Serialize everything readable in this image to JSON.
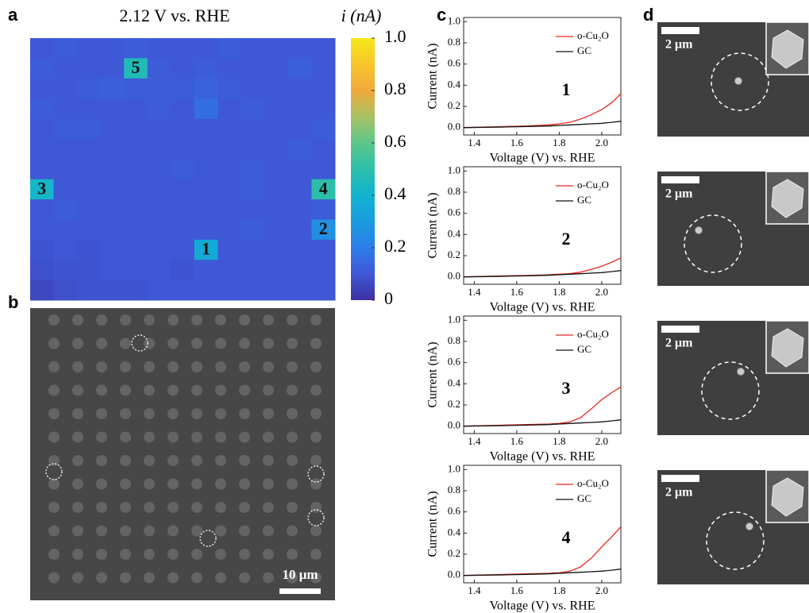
{
  "panel_labels": [
    "a",
    "b",
    "c",
    "d"
  ],
  "sem_b": {
    "scale_bar": "10 μm"
  },
  "sem_d": {
    "scale_bars": [
      "2 μm",
      "2 μm",
      "2 μm",
      "2 μm"
    ]
  },
  "chart_data": [
    {
      "type": "heatmap",
      "title": "2.12 V vs. RHE",
      "colorbar_label": "i (nA)",
      "colormap": [
        "#3d2fa0",
        "#3f58d6",
        "#2d7ee8",
        "#1a9be0",
        "#10b4d0",
        "#2bbfaa",
        "#5cc78a",
        "#a9c265",
        "#f1a83a",
        "#f8c52a",
        "#f6e81b"
      ],
      "zlim": [
        0,
        1
      ],
      "zticks": [
        0,
        0.2,
        0.4,
        0.6,
        0.8,
        {
          "value": 1,
          "label": "1.0"
        }
      ],
      "z": [
        [
          0.1,
          0.11,
          0.1,
          0.1,
          0.11,
          0.1,
          0.1,
          0.1,
          0.11,
          0.1,
          0.1,
          0.1,
          0.1
        ],
        [
          0.11,
          0.1,
          0.1,
          0.1,
          0.46,
          0.11,
          0.1,
          0.11,
          0.1,
          0.1,
          0.1,
          0.12,
          0.1
        ],
        [
          0.1,
          0.1,
          0.11,
          0.12,
          0.11,
          0.11,
          0.11,
          0.13,
          0.11,
          0.1,
          0.1,
          0.1,
          0.1
        ],
        [
          0.11,
          0.1,
          0.1,
          0.1,
          0.1,
          0.11,
          0.1,
          0.16,
          0.1,
          0.11,
          0.1,
          0.1,
          0.1
        ],
        [
          0.1,
          0.11,
          0.11,
          0.1,
          0.1,
          0.1,
          0.1,
          0.1,
          0.1,
          0.1,
          0.1,
          0.1,
          0.11
        ],
        [
          0.1,
          0.1,
          0.1,
          0.1,
          0.1,
          0.1,
          0.1,
          0.1,
          0.1,
          0.1,
          0.1,
          0.11,
          0.1
        ],
        [
          0.1,
          0.1,
          0.1,
          0.1,
          0.1,
          0.1,
          0.11,
          0.1,
          0.1,
          0.11,
          0.1,
          0.1,
          0.1
        ],
        [
          0.42,
          0.1,
          0.1,
          0.1,
          0.1,
          0.1,
          0.1,
          0.1,
          0.1,
          0.11,
          0.1,
          0.1,
          0.5
        ],
        [
          0.1,
          0.11,
          0.1,
          0.1,
          0.1,
          0.1,
          0.1,
          0.1,
          0.1,
          0.1,
          0.1,
          0.1,
          0.11
        ],
        [
          0.1,
          0.1,
          0.1,
          0.1,
          0.1,
          0.1,
          0.1,
          0.1,
          0.1,
          0.11,
          0.1,
          0.1,
          0.26
        ],
        [
          0.09,
          0.1,
          0.09,
          0.1,
          0.1,
          0.1,
          0.1,
          0.36,
          0.1,
          0.1,
          0.1,
          0.1,
          0.1
        ],
        [
          0.08,
          0.09,
          0.09,
          0.1,
          0.1,
          0.1,
          0.09,
          0.1,
          0.1,
          0.1,
          0.1,
          0.1,
          0.1
        ],
        [
          0.06,
          0.08,
          0.09,
          0.09,
          0.09,
          0.1,
          0.1,
          0.1,
          0.1,
          0.1,
          0.1,
          0.1,
          0.1
        ]
      ],
      "cell_labels": [
        {
          "label": "5",
          "row": 1,
          "col": 4
        },
        {
          "label": "3",
          "row": 7,
          "col": 0
        },
        {
          "label": "4",
          "row": 7,
          "col": 12
        },
        {
          "label": "2",
          "row": 9,
          "col": 12
        },
        {
          "label": "1",
          "row": 10,
          "col": 7
        }
      ]
    },
    {
      "type": "line",
      "annotation": "1",
      "x_label": "Voltage (V) vs. RHE",
      "y_label": "Current (nA)",
      "xlim": [
        1.35,
        2.09
      ],
      "ylim": [
        -0.07,
        1.04
      ],
      "xticks": [
        1.4,
        1.6,
        1.8,
        {
          "value": 2,
          "label": "2.0"
        }
      ],
      "yticks": [
        {
          "value": 0,
          "label": "0.0"
        },
        0.2,
        0.4,
        0.6,
        0.8,
        {
          "value": 1,
          "label": "1.0"
        }
      ],
      "x": [
        1.35,
        1.45,
        1.55,
        1.65,
        1.75,
        1.8,
        1.85,
        1.9,
        1.95,
        2.0,
        2.05,
        2.09
      ],
      "series": [
        {
          "name": "o-Cu₂O",
          "color": "#e8281e",
          "values": [
            0,
            0.005,
            0.01,
            0.015,
            0.025,
            0.035,
            0.05,
            0.08,
            0.12,
            0.17,
            0.24,
            0.32
          ]
        },
        {
          "name": "GC",
          "color": "#111111",
          "values": [
            0,
            0.003,
            0.006,
            0.01,
            0.015,
            0.02,
            0.025,
            0.03,
            0.035,
            0.04,
            0.05,
            0.06
          ]
        }
      ]
    },
    {
      "type": "line",
      "annotation": "2",
      "x_label": "Voltage (V) vs. RHE",
      "y_label": "Current (nA)",
      "xlim": [
        1.35,
        2.09
      ],
      "ylim": [
        -0.07,
        1.04
      ],
      "xticks": [
        1.4,
        1.6,
        1.8,
        {
          "value": 2,
          "label": "2.0"
        }
      ],
      "yticks": [
        {
          "value": 0,
          "label": "0.0"
        },
        0.2,
        0.4,
        0.6,
        0.8,
        {
          "value": 1,
          "label": "1.0"
        }
      ],
      "x": [
        1.35,
        1.45,
        1.55,
        1.65,
        1.75,
        1.8,
        1.85,
        1.9,
        1.95,
        2.0,
        2.05,
        2.09
      ],
      "series": [
        {
          "name": "o-Cu₂O",
          "color": "#e8281e",
          "values": [
            0,
            0.005,
            0.01,
            0.013,
            0.02,
            0.025,
            0.03,
            0.045,
            0.07,
            0.1,
            0.14,
            0.18
          ]
        },
        {
          "name": "GC",
          "color": "#111111",
          "values": [
            0,
            0.003,
            0.006,
            0.01,
            0.015,
            0.02,
            0.025,
            0.03,
            0.035,
            0.04,
            0.05,
            0.06
          ]
        }
      ]
    },
    {
      "type": "line",
      "annotation": "3",
      "x_label": "Voltage (V) vs. RHE",
      "y_label": "Current (nA)",
      "xlim": [
        1.35,
        2.09
      ],
      "ylim": [
        -0.07,
        1.04
      ],
      "xticks": [
        1.4,
        1.6,
        1.8,
        {
          "value": 2,
          "label": "2.0"
        }
      ],
      "yticks": [
        {
          "value": 0,
          "label": "0.0"
        },
        0.2,
        0.4,
        0.6,
        0.8,
        {
          "value": 1,
          "label": "1.0"
        }
      ],
      "x": [
        1.35,
        1.45,
        1.55,
        1.65,
        1.75,
        1.8,
        1.85,
        1.9,
        1.95,
        2.0,
        2.05,
        2.09
      ],
      "series": [
        {
          "name": "o-Cu₂O",
          "color": "#e8281e",
          "values": [
            0,
            0.005,
            0.01,
            0.015,
            0.02,
            0.025,
            0.04,
            0.08,
            0.16,
            0.25,
            0.32,
            0.37
          ]
        },
        {
          "name": "GC",
          "color": "#111111",
          "values": [
            0,
            0.003,
            0.006,
            0.01,
            0.015,
            0.02,
            0.025,
            0.03,
            0.035,
            0.04,
            0.05,
            0.06
          ]
        }
      ]
    },
    {
      "type": "line",
      "annotation": "4",
      "x_label": "Voltage (V) vs. RHE",
      "y_label": "Current (nA)",
      "xlim": [
        1.35,
        2.09
      ],
      "ylim": [
        -0.07,
        1.04
      ],
      "xticks": [
        1.4,
        1.6,
        1.8,
        {
          "value": 2,
          "label": "2.0"
        }
      ],
      "yticks": [
        {
          "value": 0,
          "label": "0.0"
        },
        0.2,
        0.4,
        0.6,
        0.8,
        {
          "value": 1,
          "label": "1.0"
        }
      ],
      "x": [
        1.35,
        1.45,
        1.55,
        1.65,
        1.75,
        1.8,
        1.85,
        1.9,
        1.95,
        2.0,
        2.05,
        2.09
      ],
      "series": [
        {
          "name": "o-Cu₂O",
          "color": "#e8281e",
          "values": [
            0,
            0.005,
            0.01,
            0.015,
            0.02,
            0.025,
            0.04,
            0.08,
            0.16,
            0.27,
            0.37,
            0.46
          ]
        },
        {
          "name": "GC",
          "color": "#111111",
          "values": [
            0,
            0.003,
            0.006,
            0.01,
            0.015,
            0.02,
            0.025,
            0.03,
            0.035,
            0.04,
            0.05,
            0.06
          ]
        }
      ]
    }
  ]
}
